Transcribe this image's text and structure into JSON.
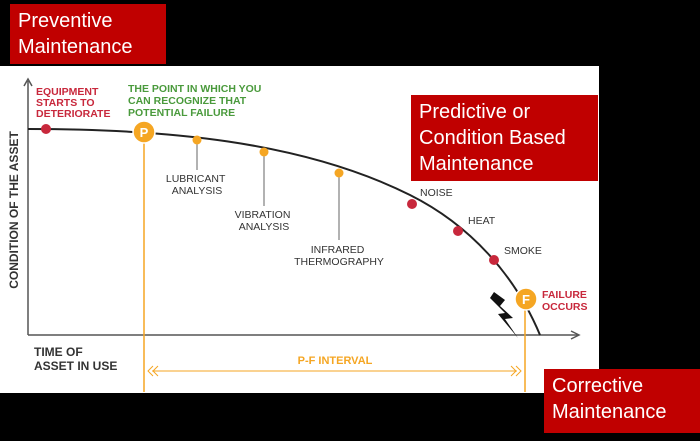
{
  "colors": {
    "accent_red": "#c00000",
    "orange": "#f5a623",
    "green": "#4a9a3c",
    "dot_red": "#c8283c",
    "curve": "#222222"
  },
  "labels": {
    "preventive": "Preventive\nMaintenance",
    "predictive": "Predictive or\nCondition Based\nMaintenance",
    "corrective": "Corrective\nMaintenance"
  },
  "diagram": {
    "y_axis_label": "CONDITION OF THE ASSET",
    "x_axis_label": [
      "TIME OF",
      "ASSET IN USE"
    ],
    "interval_label": "P-F INTERVAL",
    "equipment_deteriorate": [
      "EQUIPMENT",
      "STARTS TO",
      "DETERIORATE"
    ],
    "point_recognize": [
      "THE POINT IN WHICH YOU",
      "CAN RECOGNIZE THAT",
      "POTENTIAL FAILURE"
    ],
    "p_marker": "P",
    "f_marker": "F",
    "failure_occurs": [
      "FAILURE",
      "OCCURS"
    ],
    "stages": [
      {
        "lines": [
          "LUBRICANT",
          "ANALYSIS"
        ],
        "kind": "orange"
      },
      {
        "lines": [
          "VIBRATION",
          "ANALYSIS"
        ],
        "kind": "orange"
      },
      {
        "lines": [
          "INFRARED",
          "THERMOGRAPHY"
        ],
        "kind": "orange"
      },
      {
        "lines": [
          "NOISE"
        ],
        "kind": "red"
      },
      {
        "lines": [
          "HEAT"
        ],
        "kind": "red"
      },
      {
        "lines": [
          "SMOKE"
        ],
        "kind": "red"
      }
    ]
  }
}
